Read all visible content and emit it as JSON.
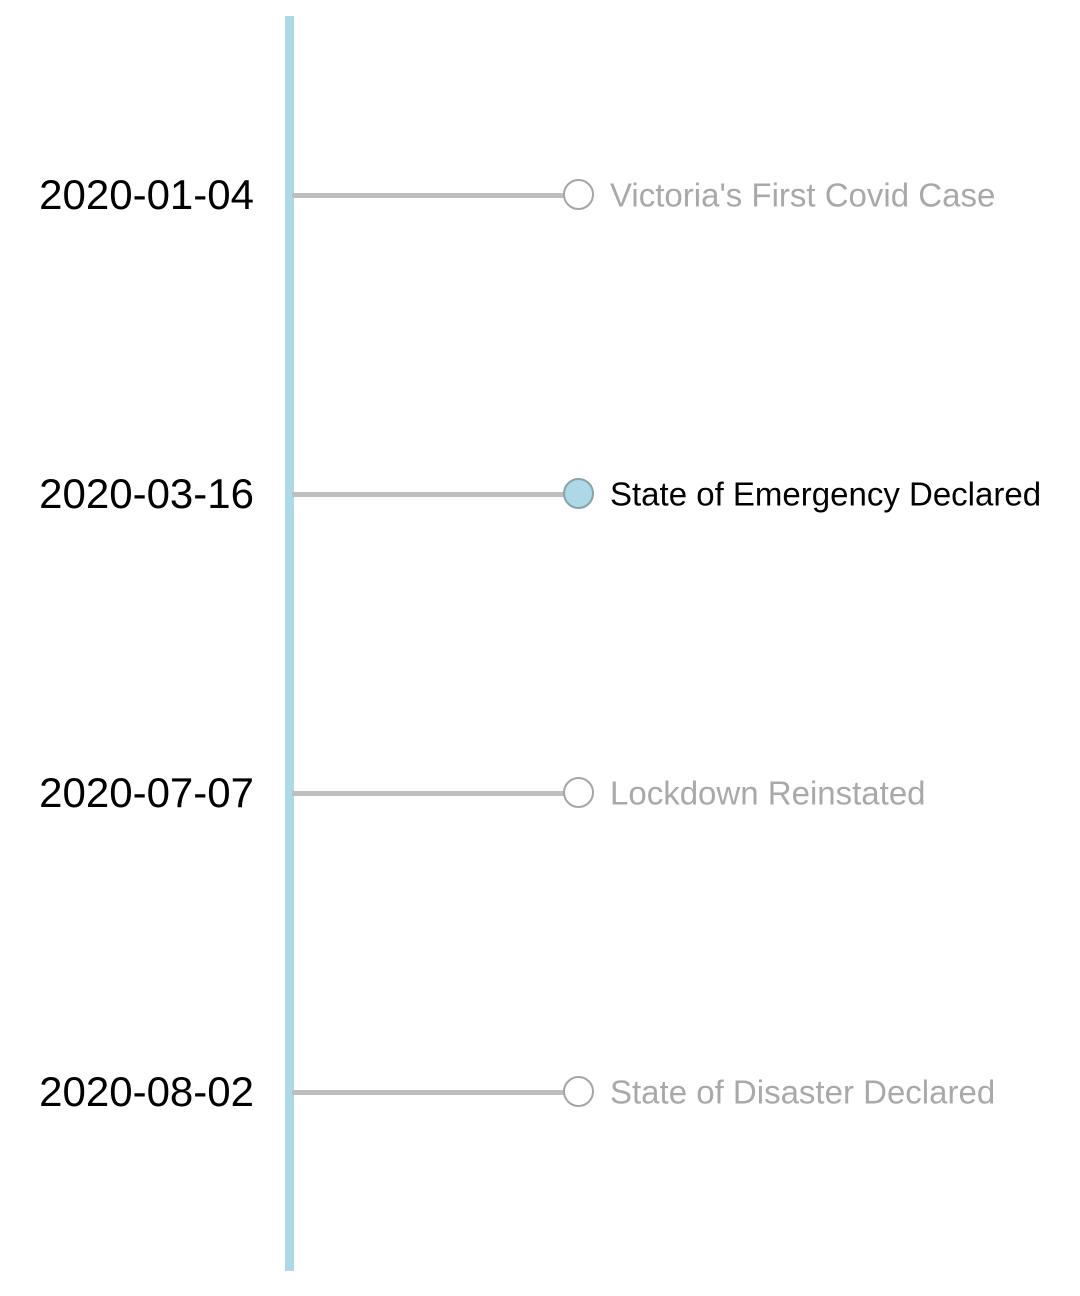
{
  "timeline": {
    "axis_color": "#add8e6",
    "events": [
      {
        "date": "2020-01-04",
        "label": "Victoria's First Covid Case",
        "active": false
      },
      {
        "date": "2020-03-16",
        "label": "State of Emergency Declared",
        "active": true
      },
      {
        "date": "2020-07-07",
        "label": "Lockdown Reinstated",
        "active": false
      },
      {
        "date": "2020-08-02",
        "label": "State of Disaster Declared",
        "active": false
      }
    ]
  }
}
